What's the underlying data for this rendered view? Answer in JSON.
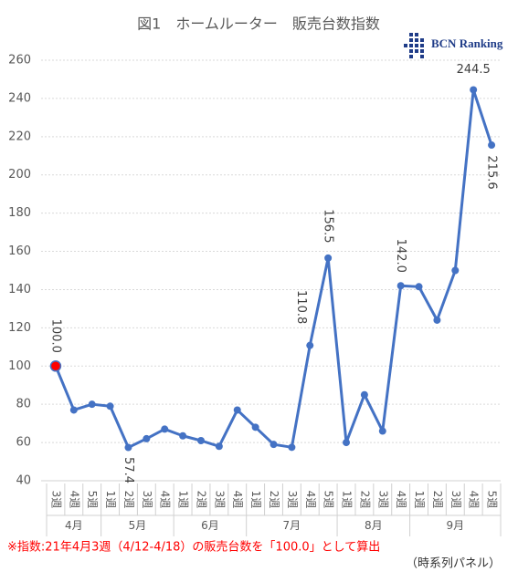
{
  "chart_data": {
    "type": "line",
    "title": "図1　ホームルーター　販売台数指数",
    "logo": "BCN Ranking",
    "groups": [
      {
        "label": "4月",
        "categories": [
          "3週",
          "4週",
          "5週"
        ]
      },
      {
        "label": "5月",
        "categories": [
          "1週",
          "2週",
          "3週",
          "4週"
        ]
      },
      {
        "label": "6月",
        "categories": [
          "1週",
          "2週",
          "3週",
          "4週"
        ]
      },
      {
        "label": "7月",
        "categories": [
          "1週",
          "2週",
          "3週",
          "4週",
          "5週"
        ]
      },
      {
        "label": "8月",
        "categories": [
          "1週",
          "2週",
          "3週",
          "4週"
        ]
      },
      {
        "label": "9月",
        "categories": [
          "1週",
          "2週",
          "3週",
          "4週",
          "5週"
        ]
      }
    ],
    "values": [
      100.0,
      77,
      80,
      79,
      57.4,
      62,
      67,
      63.5,
      61,
      58,
      77,
      68,
      59,
      57.5,
      110.8,
      156.5,
      60,
      85,
      66,
      142.0,
      141.5,
      124,
      150,
      244.5,
      215.6
    ],
    "value_labels": [
      "100.0",
      null,
      null,
      null,
      "57.4",
      null,
      null,
      null,
      null,
      null,
      null,
      null,
      null,
      null,
      "110.8",
      "156.5",
      null,
      null,
      null,
      "142.0",
      null,
      null,
      null,
      "244.5",
      "215.6"
    ],
    "color": "#4472c4",
    "highlight": {
      "index": 0,
      "color": "#ff0000"
    },
    "ylim": [
      40,
      260
    ],
    "yticks": [
      40,
      60,
      80,
      100,
      120,
      140,
      160,
      180,
      200,
      220,
      240,
      260
    ],
    "grid": true,
    "note": "※指数:21年4月3週（4/12-4/18）の販売台数を「100.0」として算出",
    "source": "（時系列パネル）"
  }
}
